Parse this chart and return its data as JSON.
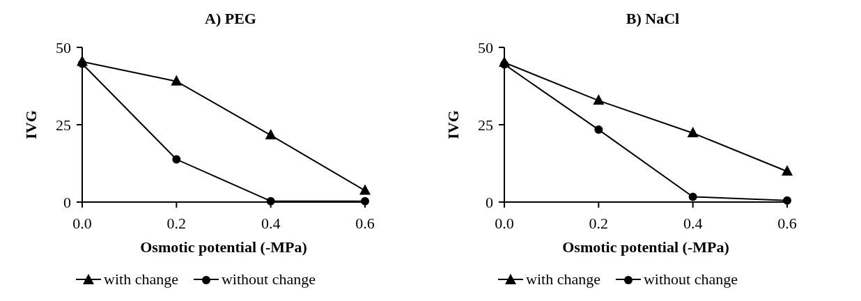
{
  "chart_data": [
    {
      "type": "line",
      "title": "A) PEG",
      "xlabel": "Osmotic potential (-MPa)",
      "ylabel": "IVG",
      "x": [
        0,
        0.2,
        0.4,
        0.6
      ],
      "xlim": [
        0,
        0.6
      ],
      "xticks": [
        {
          "value": 0,
          "label": "0.0"
        },
        {
          "value": 0.2,
          "label": "0.2"
        },
        {
          "value": 0.4,
          "label": "0.4"
        },
        {
          "value": 0.6,
          "label": "0.6"
        }
      ],
      "ylim": [
        0,
        50
      ],
      "yticks": [
        0,
        25,
        50
      ],
      "grid": false,
      "legend": "bottom",
      "line_style": "solid",
      "series": [
        {
          "name": "with change",
          "color": "#000000",
          "marker": "triangle",
          "values": [
            45.4,
            39,
            21.6,
            3.7
          ]
        },
        {
          "name": "without change",
          "color": "#000000",
          "marker": "circle",
          "values": [
            44.7,
            13.8,
            0.3,
            0.3
          ]
        }
      ]
    },
    {
      "type": "line",
      "title": "B) NaCl",
      "xlabel": "Osmotic potential (-MPa)",
      "ylabel": "IVG",
      "x": [
        0,
        0.2,
        0.4,
        0.6
      ],
      "xlim": [
        0,
        0.6
      ],
      "xticks": [
        {
          "value": 0,
          "label": "0.0"
        },
        {
          "value": 0.2,
          "label": "0.2"
        },
        {
          "value": 0.4,
          "label": "0.4"
        },
        {
          "value": 0.6,
          "label": "0.6"
        }
      ],
      "ylim": [
        0,
        50
      ],
      "yticks": [
        0,
        25,
        50
      ],
      "grid": false,
      "legend": "bottom",
      "line_style": "solid",
      "series": [
        {
          "name": "with change",
          "color": "#000000",
          "marker": "triangle",
          "values": [
            45.1,
            32.8,
            22.3,
            9.9
          ]
        },
        {
          "name": "without change",
          "color": "#000000",
          "marker": "circle",
          "values": [
            44.5,
            23.4,
            1.7,
            0.5
          ]
        }
      ]
    }
  ]
}
